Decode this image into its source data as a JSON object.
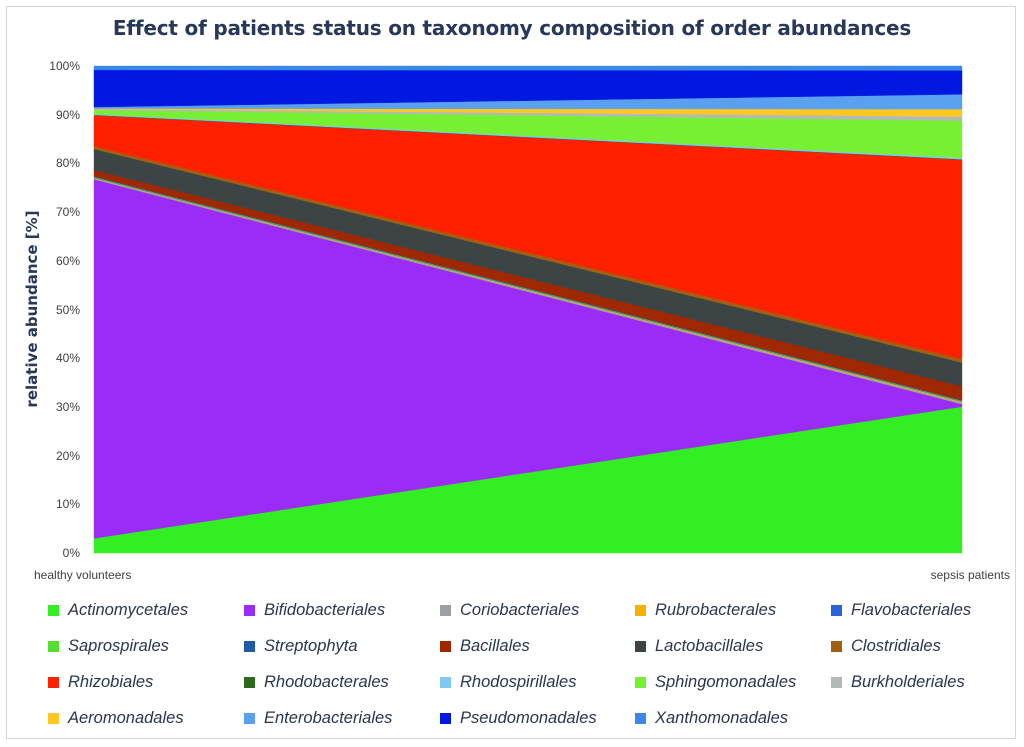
{
  "chart_data": {
    "type": "area",
    "stacked": true,
    "normalized": true,
    "title": "Effect of patients status on taxonomy composition of order abundances",
    "ylabel": "relative abundance [%]",
    "xlabel": "",
    "categories": [
      "healthy volunteers",
      "sepsis patients"
    ],
    "y_ticks": [
      "0%",
      "10%",
      "20%",
      "30%",
      "40%",
      "50%",
      "60%",
      "70%",
      "80%",
      "90%",
      "100%"
    ],
    "ylim": [
      0,
      100
    ],
    "legend_position": "bottom",
    "series": [
      {
        "name": "Actinomycetales",
        "color": "#33ee22",
        "values": [
          3.0,
          29.5
        ]
      },
      {
        "name": "Bifidobacteriales",
        "color": "#9b2cf5",
        "values": [
          73.5,
          0.5
        ]
      },
      {
        "name": "Coriobacteriales",
        "color": "#9aa0a6",
        "values": [
          0.2,
          0.3
        ]
      },
      {
        "name": "Rubrobacterales",
        "color": "#f5b000",
        "values": [
          0.1,
          0.2
        ]
      },
      {
        "name": "Flavobacteriales",
        "color": "#2a64d8",
        "values": [
          0.1,
          0.1
        ]
      },
      {
        "name": "Saprospirales",
        "color": "#55dd33",
        "values": [
          0.1,
          0.1
        ]
      },
      {
        "name": "Streptophyta",
        "color": "#1e5aa8",
        "values": [
          0.1,
          0.1
        ]
      },
      {
        "name": "Bacillales",
        "color": "#a02800",
        "values": [
          1.3,
          2.8
        ]
      },
      {
        "name": "Lactobacillales",
        "color": "#3c4446",
        "values": [
          4.3,
          4.8
        ]
      },
      {
        "name": "Clostridiales",
        "color": "#a06010",
        "values": [
          0.6,
          0.7
        ]
      },
      {
        "name": "Rhizobiales",
        "color": "#ff2000",
        "values": [
          6.3,
          40.2
        ]
      },
      {
        "name": "Rhodobacterales",
        "color": "#2e6a1a",
        "values": [
          0.1,
          0.1
        ]
      },
      {
        "name": "Rhodospirillales",
        "color": "#80c8f0",
        "values": [
          0.2,
          0.3
        ]
      },
      {
        "name": "Sphingomonadales",
        "color": "#77f033",
        "values": [
          0.8,
          7.5
        ]
      },
      {
        "name": "Burkholderiales",
        "color": "#b4b8b8",
        "values": [
          0.2,
          0.8
        ]
      },
      {
        "name": "Aeromonadales",
        "color": "#ffc820",
        "values": [
          0.1,
          1.5
        ]
      },
      {
        "name": "Enterobacteriales",
        "color": "#5aa0f0",
        "values": [
          0.3,
          3.0
        ]
      },
      {
        "name": "Pseudomonadales",
        "color": "#0018e0",
        "values": [
          7.6,
          4.8
        ]
      },
      {
        "name": "Xanthomonadales",
        "color": "#3a88e8",
        "values": [
          0.8,
          0.9
        ]
      }
    ]
  }
}
